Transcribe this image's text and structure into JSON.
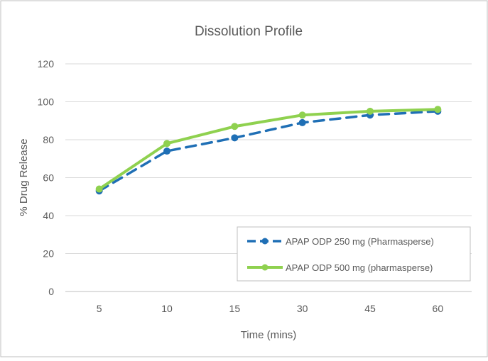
{
  "chart_data": {
    "type": "line",
    "title": "Dissolution Profile",
    "xlabel": "Time (mins)",
    "ylabel": "% Drug Release",
    "categories": [
      "5",
      "10",
      "15",
      "30",
      "45",
      "60"
    ],
    "ylim": [
      0,
      120
    ],
    "yticks": [
      0,
      20,
      40,
      60,
      80,
      100,
      120
    ],
    "grid": true,
    "legend_position": "bottom-right",
    "series": [
      {
        "name": "APAP ODP 250 mg (Pharmasperse)",
        "values": [
          53,
          74,
          81,
          89,
          93,
          95
        ],
        "color": "#1f6fb5",
        "style": "dashed"
      },
      {
        "name": "APAP ODP 500 mg (pharmasperse)",
        "values": [
          54,
          78,
          87,
          93,
          95,
          96
        ],
        "color": "#8fd14f",
        "style": "solid"
      }
    ]
  }
}
